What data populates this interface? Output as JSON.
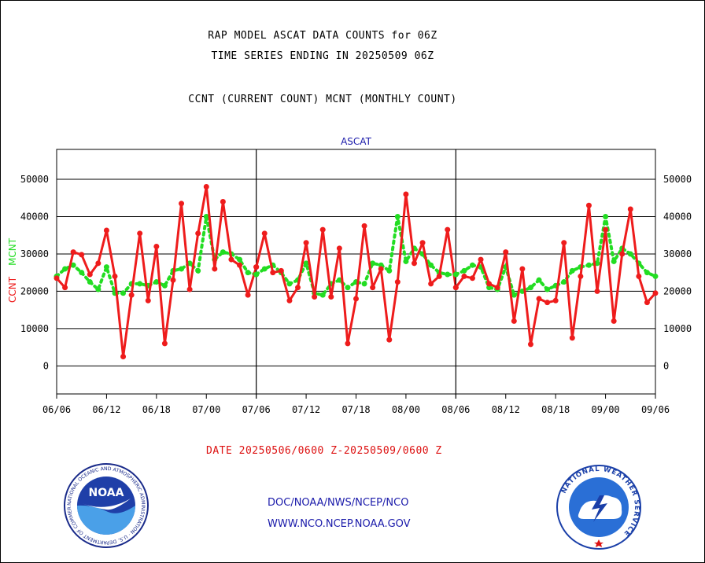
{
  "titles": {
    "line1": "RAP MODEL ASCAT DATA COUNTS for 06Z",
    "line2": "TIME SERIES ENDING IN 20250509 06Z",
    "line3": "CCNT (CURRENT COUNT) MCNT (MONTHLY COUNT)"
  },
  "footer": {
    "date_range": "DATE 20250506/0600 Z-20250509/0600 Z",
    "org_line": "DOC/NOAA/NWS/NCEP/NCO",
    "url_line": "WWW.NCO.NCEP.NOAA.GOV"
  },
  "logos": {
    "noaa_text": "NOAA",
    "noaa_ring_text": "NATIONAL OCEANIC AND ATMOSPHERIC ADMINISTRATION · U.S. DEPARTMENT OF COMMERCE",
    "nws_ring_text": "NATIONAL WEATHER SERVICE"
  },
  "colors": {
    "ccnt": "#ee1c1c",
    "mcnt": "#22dd22",
    "panel_title": "#1a1aaa",
    "grid": "#000000"
  },
  "chart_data": {
    "type": "line",
    "panel_title": "ASCAT",
    "ylabel_left": [
      "CCNT",
      "MCNT"
    ],
    "yticks": [
      0,
      10000,
      20000,
      30000,
      40000,
      50000
    ],
    "ylim": [
      -7500,
      58000
    ],
    "grid": true,
    "panels": [
      {
        "xticks": [
          "06/06",
          "06/12",
          "06/18",
          "07/00",
          "07/06"
        ],
        "ccnt": [
          23500,
          21000,
          30500,
          29800,
          24500,
          27500,
          36300,
          24000,
          2500,
          19000,
          35500,
          17500,
          32000,
          6000,
          23000,
          43500,
          20500,
          35500,
          48000,
          26000,
          44000,
          28500,
          27000,
          19000,
          26500
        ],
        "mcnt": [
          24000,
          26000,
          27000,
          25000,
          22500,
          20500,
          26500,
          19500,
          19500,
          22000,
          22000,
          21500,
          22500,
          21500,
          25500,
          26000,
          27500,
          25500,
          40000,
          28500,
          30500,
          30000,
          28500,
          25000,
          24500
        ]
      },
      {
        "xticks": [
          "07/06",
          "07/12",
          "07/18",
          "08/00",
          "08/06"
        ],
        "ccnt": [
          26500,
          35500,
          25000,
          25500,
          17500,
          21000,
          33000,
          18500,
          36500,
          18500,
          31500,
          6000,
          18000,
          37500,
          21000,
          26000,
          7000,
          22500,
          46000,
          27500,
          33000,
          22000,
          24000,
          36500,
          21000
        ],
        "mcnt": [
          24500,
          26000,
          27000,
          25000,
          22000,
          23000,
          27500,
          19500,
          19000,
          22000,
          23000,
          21000,
          22500,
          22000,
          27500,
          27000,
          25500,
          40000,
          28000,
          31500,
          30000,
          27000,
          25000,
          24500,
          24500
        ]
      },
      {
        "xticks": [
          "08/06",
          "08/12",
          "08/18",
          "09/00",
          "09/06"
        ],
        "ccnt": [
          21000,
          24000,
          23500,
          28500,
          22000,
          21000,
          30500,
          12000,
          26000,
          5800,
          18000,
          17000,
          17500,
          33000,
          7500,
          24000,
          43000,
          20000,
          36500,
          12000,
          30000,
          42000,
          24000,
          17000,
          19500
        ],
        "mcnt": [
          24500,
          25500,
          27000,
          26500,
          21000,
          20500,
          26500,
          19000,
          20000,
          21000,
          23000,
          20500,
          21500,
          22500,
          25500,
          26500,
          27000,
          27500,
          40000,
          28000,
          31500,
          30000,
          27500,
          25000,
          24000
        ]
      }
    ]
  }
}
